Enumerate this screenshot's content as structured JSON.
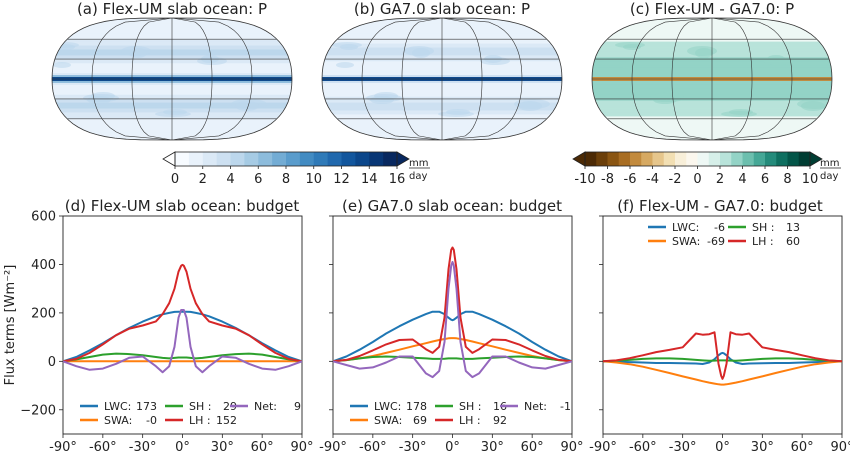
{
  "maps": [
    {
      "title": "(a) Flex-UM slab ocean: P",
      "kind": "P_flex"
    },
    {
      "title": "(b) GA7.0 slab ocean: P",
      "kind": "P_ga"
    },
    {
      "title": "(c) Flex-UM - GA7.0: P",
      "kind": "P_diff"
    }
  ],
  "colorbars": [
    {
      "ticks": [
        "0",
        "2",
        "4",
        "6",
        "8",
        "10",
        "12",
        "14",
        "16"
      ],
      "unit_top": "mm",
      "unit_bottom": "day",
      "colors": [
        "#f7fbff",
        "#e9f2fb",
        "#dbe9f6",
        "#cde0f1",
        "#bcd7ec",
        "#a6cbe4",
        "#8dbcdc",
        "#73acd4",
        "#5a9ccc",
        "#428bc2",
        "#2f7ab8",
        "#2068ad",
        "#12569d",
        "#0b468a",
        "#083675",
        "#08285f"
      ]
    },
    {
      "ticks": [
        "-10",
        "-8",
        "-6",
        "-4",
        "-2",
        "0",
        "2",
        "4",
        "6",
        "8",
        "10"
      ],
      "unit_top": "mm",
      "unit_bottom": "day",
      "colors": [
        "#4c2a05",
        "#6b3f0a",
        "#8a5512",
        "#a86d22",
        "#c28a3d",
        "#d6a962",
        "#e6c68c",
        "#f2dfb3",
        "#f8efd9",
        "#fbf7ee",
        "#eef8f5",
        "#d6efe9",
        "#b8e3da",
        "#93d3c6",
        "#6cbfae",
        "#45a796",
        "#248b7b",
        "#0e6f60",
        "#035548",
        "#003d33"
      ]
    }
  ],
  "y_axis_label": "Flux terms [Wm⁻²]",
  "chart_data": [
    {
      "type": "line",
      "title": "(d) Flex-UM slab ocean: budget",
      "ylim": [
        -300,
        600
      ],
      "xlim": [
        -90,
        90
      ],
      "yticks": [
        "600",
        "400",
        "200",
        "0",
        "−200"
      ],
      "xticks": [
        "-90°",
        "-60°",
        "-30°",
        "0°",
        "30°",
        "60°",
        "90°"
      ],
      "x": [
        -90,
        -80,
        -70,
        -60,
        -50,
        -40,
        -30,
        -20,
        -15,
        -10,
        -6,
        -3,
        -1,
        0,
        1,
        3,
        6,
        10,
        15,
        20,
        30,
        40,
        50,
        60,
        70,
        80,
        90
      ],
      "series": [
        {
          "name": "LWC:",
          "value": "173",
          "color": "#1f77b4",
          "values": [
            0,
            18,
            45,
            75,
            108,
            138,
            164,
            186,
            194,
            200,
            204,
            205,
            205,
            205,
            205,
            205,
            204,
            200,
            194,
            186,
            164,
            138,
            108,
            75,
            45,
            18,
            0
          ]
        },
        {
          "name": "SWA:",
          "value": "-0",
          "color": "#ff7f0e",
          "values": [
            0,
            0,
            0,
            0,
            0,
            0,
            0,
            0,
            0,
            0,
            0,
            0,
            0,
            0,
            0,
            0,
            0,
            0,
            0,
            0,
            0,
            0,
            0,
            0,
            0,
            0,
            0
          ]
        },
        {
          "name": "SH :",
          "value": "29",
          "color": "#2ca02c",
          "values": [
            0,
            8,
            18,
            28,
            32,
            30,
            25,
            18,
            14,
            12,
            14,
            16,
            16,
            16,
            16,
            16,
            14,
            12,
            14,
            18,
            25,
            30,
            32,
            28,
            18,
            8,
            0
          ]
        },
        {
          "name": "LH :",
          "value": "152",
          "color": "#d62728",
          "values": [
            0,
            10,
            35,
            70,
            108,
            135,
            148,
            165,
            195,
            240,
            300,
            370,
            395,
            398,
            395,
            370,
            300,
            240,
            195,
            165,
            148,
            135,
            108,
            70,
            35,
            10,
            0
          ]
        },
        {
          "name": "Net:",
          "value": "9",
          "color": "#9467bd",
          "values": [
            0,
            -20,
            -35,
            -30,
            -10,
            15,
            20,
            -20,
            -45,
            -20,
            60,
            180,
            212,
            212,
            212,
            180,
            60,
            -20,
            -45,
            -20,
            20,
            15,
            -10,
            -30,
            -35,
            -20,
            0
          ]
        }
      ]
    },
    {
      "type": "line",
      "title": "(e) GA7.0 slab ocean: budget",
      "ylim": [
        -300,
        600
      ],
      "xlim": [
        -90,
        90
      ],
      "xticks": [
        "-90°",
        "-60°",
        "-30°",
        "0°",
        "30°",
        "60°",
        "90°"
      ],
      "x": [
        -90,
        -80,
        -70,
        -60,
        -50,
        -40,
        -30,
        -20,
        -15,
        -10,
        -6,
        -3,
        -1,
        0,
        1,
        3,
        6,
        10,
        15,
        20,
        30,
        40,
        50,
        60,
        70,
        80,
        90
      ],
      "series": [
        {
          "name": "LWC:",
          "value": "178",
          "color": "#1f77b4",
          "values": [
            0,
            20,
            48,
            80,
            115,
            145,
            172,
            195,
            205,
            205,
            195,
            180,
            172,
            170,
            172,
            180,
            195,
            205,
            205,
            195,
            172,
            145,
            115,
            80,
            48,
            20,
            0
          ]
        },
        {
          "name": "SWA:",
          "value": "69",
          "color": "#ff7f0e",
          "values": [
            0,
            5,
            12,
            22,
            35,
            48,
            62,
            75,
            82,
            88,
            92,
            95,
            96,
            96,
            96,
            95,
            92,
            88,
            82,
            75,
            62,
            48,
            35,
            22,
            12,
            5,
            0
          ]
        },
        {
          "name": "SH :",
          "value": "16",
          "color": "#2ca02c",
          "values": [
            0,
            5,
            12,
            18,
            20,
            18,
            15,
            12,
            10,
            10,
            11,
            12,
            12,
            12,
            12,
            12,
            11,
            10,
            10,
            12,
            15,
            18,
            20,
            18,
            12,
            5,
            0
          ]
        },
        {
          "name": "LH :",
          "value": "92",
          "color": "#d62728",
          "values": [
            0,
            6,
            22,
            45,
            70,
            88,
            90,
            50,
            35,
            60,
            180,
            380,
            460,
            470,
            460,
            380,
            180,
            60,
            35,
            50,
            90,
            88,
            70,
            45,
            22,
            6,
            0
          ]
        },
        {
          "name": "Net:",
          "value": "-1",
          "color": "#9467bd",
          "values": [
            0,
            -15,
            -30,
            -25,
            -5,
            20,
            20,
            -50,
            -65,
            -40,
            80,
            300,
            395,
            410,
            395,
            300,
            80,
            -40,
            -65,
            -50,
            20,
            20,
            -5,
            -25,
            -30,
            -15,
            0
          ]
        }
      ]
    },
    {
      "type": "line",
      "title": "(f) Flex-UM - GA7.0: budget",
      "ylim": [
        -300,
        600
      ],
      "xlim": [
        -90,
        90
      ],
      "xticks": [
        "-90°",
        "-60°",
        "-30°",
        "0°",
        "30°",
        "60°",
        "90°"
      ],
      "x": [
        -90,
        -80,
        -70,
        -60,
        -50,
        -40,
        -30,
        -20,
        -15,
        -10,
        -6,
        -3,
        -1,
        0,
        1,
        3,
        6,
        10,
        15,
        20,
        30,
        40,
        50,
        60,
        70,
        80,
        90
      ],
      "series": [
        {
          "name": "LWC:",
          "value": "-6",
          "color": "#1f77b4",
          "values": [
            0,
            -2,
            -3,
            -5,
            -7,
            -7,
            -8,
            -9,
            -11,
            -5,
            9,
            25,
            33,
            35,
            33,
            25,
            9,
            -5,
            -11,
            -9,
            -8,
            -7,
            -7,
            -5,
            -3,
            -2,
            0
          ]
        },
        {
          "name": "SWA:",
          "value": "-69",
          "color": "#ff7f0e",
          "values": [
            0,
            -5,
            -12,
            -22,
            -35,
            -48,
            -62,
            -75,
            -82,
            -88,
            -92,
            -95,
            -96,
            -96,
            -96,
            -95,
            -92,
            -88,
            -82,
            -75,
            -62,
            -48,
            -35,
            -22,
            -12,
            -5,
            0
          ]
        },
        {
          "name": "SH :",
          "value": "13",
          "color": "#2ca02c",
          "values": [
            0,
            3,
            6,
            10,
            12,
            12,
            10,
            6,
            4,
            2,
            3,
            4,
            4,
            4,
            4,
            4,
            3,
            2,
            4,
            6,
            10,
            12,
            12,
            10,
            6,
            3,
            0
          ]
        },
        {
          "name": "LH :",
          "value": "60",
          "color": "#d62728",
          "values": [
            0,
            4,
            13,
            25,
            38,
            47,
            58,
            115,
            110,
            112,
            120,
            -10,
            -60,
            -72,
            -60,
            -10,
            120,
            112,
            110,
            115,
            58,
            47,
            38,
            25,
            13,
            4,
            0
          ]
        }
      ]
    }
  ]
}
